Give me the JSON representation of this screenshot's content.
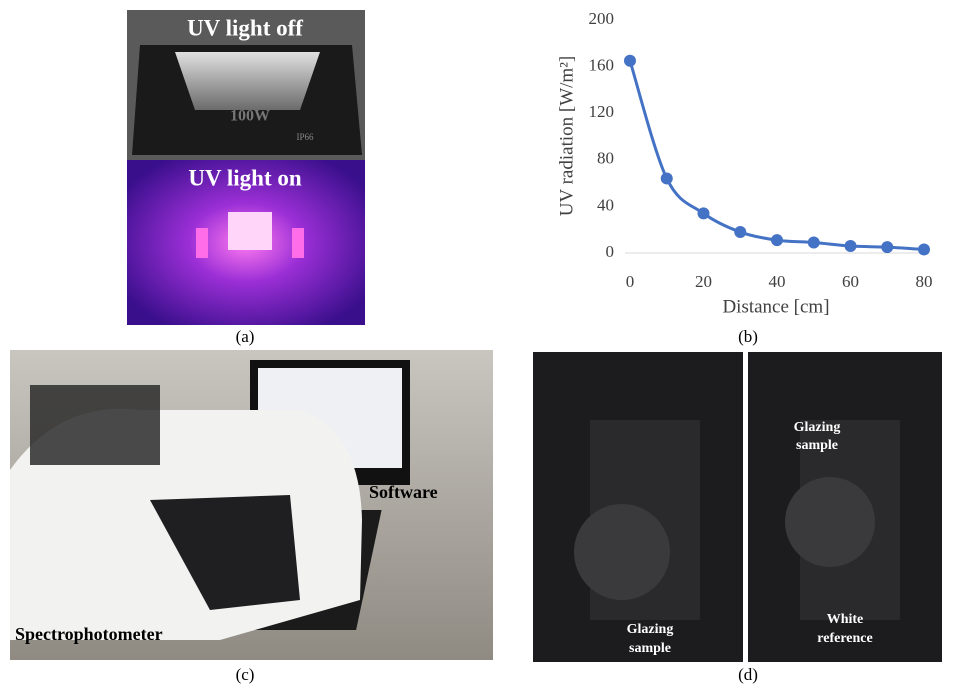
{
  "chart_data": {
    "type": "line",
    "x_label": "Distance [cm]",
    "y_label": "UV radiation [W/m²]",
    "x": [
      0,
      10,
      20,
      30,
      40,
      50,
      60,
      70,
      80
    ],
    "values": [
      165,
      64,
      34,
      18,
      11,
      9,
      6,
      5,
      3
    ],
    "color": "#4472c4",
    "smooth": true,
    "markers": true,
    "xlim": [
      0,
      80
    ],
    "xticks": [
      0,
      20,
      40,
      60,
      80
    ],
    "ylim": [
      0,
      200
    ],
    "yticks": [
      0,
      40,
      80,
      120,
      160,
      200
    ],
    "grid": false
  },
  "panels": {
    "a": {
      "label": "(a)",
      "texts": [
        "UV light off",
        "100W",
        "IP66",
        "UV light on"
      ]
    },
    "b": {
      "label": "(b)"
    },
    "c": {
      "label": "(c)",
      "texts": [
        "Software",
        "Spectrophotometer"
      ]
    },
    "d": {
      "label": "(d)",
      "annotations": [
        {
          "lines": [
            "Glazing",
            "sample"
          ]
        },
        {
          "lines": [
            "Glazing",
            "sample"
          ]
        },
        {
          "lines": [
            "White",
            "reference"
          ]
        }
      ]
    }
  }
}
